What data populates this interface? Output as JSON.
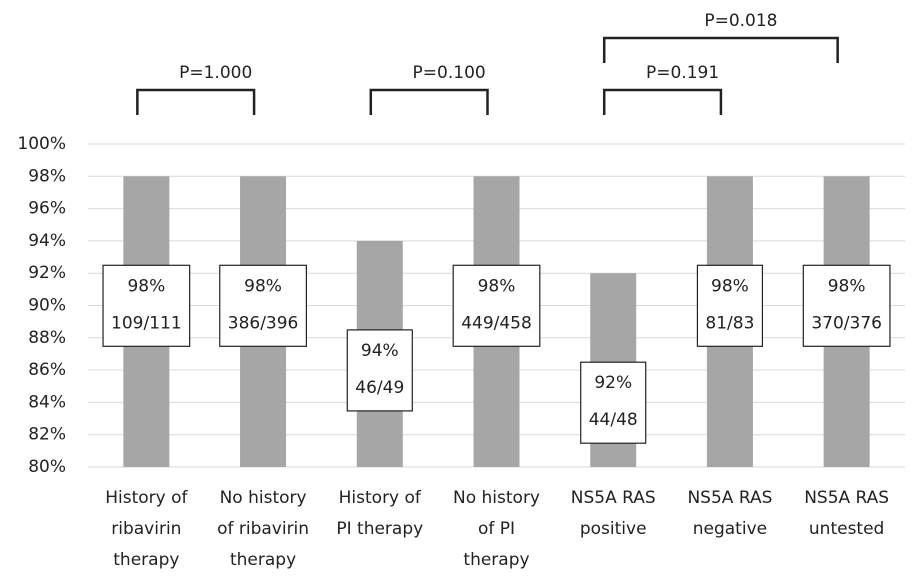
{
  "chart_data": {
    "type": "bar",
    "categories": [
      [
        "History of",
        "ribavirin",
        "therapy"
      ],
      [
        "No history",
        "of ribavirin",
        "therapy"
      ],
      [
        "History of",
        "PI therapy"
      ],
      [
        "No history",
        "of PI",
        "therapy"
      ],
      [
        "NS5A RAS",
        "positive"
      ],
      [
        "NS5A RAS",
        "negative"
      ],
      [
        "NS5A RAS",
        "untested"
      ]
    ],
    "values": [
      98,
      98,
      94,
      98,
      92,
      98,
      98
    ],
    "value_labels": [
      "98%",
      "98%",
      "94%",
      "98%",
      "92%",
      "98%",
      "98%"
    ],
    "fractions": [
      "109/111",
      "386/396",
      "46/49",
      "449/458",
      "44/48",
      "81/83",
      "370/376"
    ],
    "color": "#a6a6a6",
    "ylim": [
      80,
      100
    ],
    "yticks": [
      {
        "value": 80,
        "label": "80%"
      },
      {
        "value": 82,
        "label": "82%"
      },
      {
        "value": 84,
        "label": "84%"
      },
      {
        "value": 86,
        "label": "86%"
      },
      {
        "value": 88,
        "label": "88%"
      },
      {
        "value": 90,
        "label": "90%"
      },
      {
        "value": 92,
        "label": "92%"
      },
      {
        "value": 94,
        "label": "94%"
      },
      {
        "value": 96,
        "label": "96%"
      },
      {
        "value": 98,
        "label": "98%"
      },
      {
        "value": 100,
        "label": "100%"
      }
    ],
    "grid": true,
    "comparisons": [
      {
        "label": "P=1.000",
        "categories": [
          0,
          1
        ]
      },
      {
        "label": "P=0.100",
        "categories": [
          2,
          3
        ]
      },
      {
        "label": "P=0.191",
        "categories": [
          4,
          5
        ]
      },
      {
        "label": "P=0.018",
        "categories": [
          4,
          6
        ]
      }
    ]
  }
}
